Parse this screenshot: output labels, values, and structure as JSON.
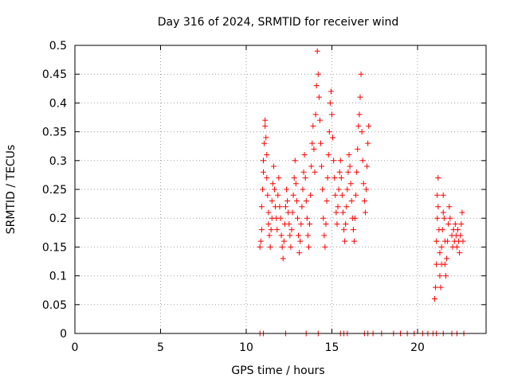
{
  "chart_data": {
    "type": "scatter",
    "title": "Day 316 of 2024, SRMTID for receiver wind",
    "xlabel": "GPS time / hours",
    "ylabel": "SRMTID / TECUs",
    "xlim": [
      0,
      24
    ],
    "ylim": [
      0,
      0.5
    ],
    "xticks": [
      "0",
      "5",
      "10",
      "15",
      "20"
    ],
    "xtick_values": [
      0,
      5,
      10,
      15,
      20
    ],
    "yticks": [
      "0",
      "0.05",
      "0.1",
      "0.15",
      "0.2",
      "0.25",
      "0.3",
      "0.35",
      "0.4",
      "0.45",
      "0.5"
    ],
    "ytick_values": [
      0,
      0.05,
      0.1,
      0.15,
      0.2,
      0.25,
      0.3,
      0.35,
      0.4,
      0.45,
      0.5
    ],
    "grid": true,
    "marker": "plus",
    "color": "#ff0000",
    "series": [
      {
        "name": "SRMTID",
        "points": [
          [
            10.8,
            0.15
          ],
          [
            10.85,
            0.16
          ],
          [
            10.9,
            0.18
          ],
          [
            10.9,
            0.22
          ],
          [
            10.95,
            0.25
          ],
          [
            11.0,
            0.28
          ],
          [
            11.0,
            0.3
          ],
          [
            11.05,
            0.33
          ],
          [
            11.1,
            0.36
          ],
          [
            11.1,
            0.37
          ],
          [
            11.15,
            0.34
          ],
          [
            11.2,
            0.31
          ],
          [
            11.2,
            0.27
          ],
          [
            11.25,
            0.24
          ],
          [
            11.3,
            0.21
          ],
          [
            11.3,
            0.19
          ],
          [
            11.35,
            0.17
          ],
          [
            11.4,
            0.15
          ],
          [
            11.45,
            0.18
          ],
          [
            11.5,
            0.2
          ],
          [
            11.5,
            0.23
          ],
          [
            11.55,
            0.26
          ],
          [
            11.6,
            0.29
          ],
          [
            11.65,
            0.25
          ],
          [
            11.7,
            0.22
          ],
          [
            11.75,
            0.2
          ],
          [
            11.8,
            0.18
          ],
          [
            11.85,
            0.24
          ],
          [
            11.9,
            0.27
          ],
          [
            11.95,
            0.22
          ],
          [
            12.0,
            0.2
          ],
          [
            12.05,
            0.17
          ],
          [
            12.1,
            0.15
          ],
          [
            12.15,
            0.13
          ],
          [
            12.2,
            0.16
          ],
          [
            12.25,
            0.19
          ],
          [
            12.3,
            0.22
          ],
          [
            12.35,
            0.25
          ],
          [
            12.4,
            0.23
          ],
          [
            12.45,
            0.21
          ],
          [
            12.5,
            0.19
          ],
          [
            12.55,
            0.17
          ],
          [
            12.6,
            0.15
          ],
          [
            12.65,
            0.18
          ],
          [
            12.7,
            0.21
          ],
          [
            12.75,
            0.24
          ],
          [
            12.8,
            0.27
          ],
          [
            12.85,
            0.3
          ],
          [
            12.9,
            0.26
          ],
          [
            12.95,
            0.23
          ],
          [
            13.0,
            0.2
          ],
          [
            13.05,
            0.17
          ],
          [
            13.1,
            0.14
          ],
          [
            13.15,
            0.16
          ],
          [
            13.2,
            0.19
          ],
          [
            13.25,
            0.22
          ],
          [
            13.3,
            0.25
          ],
          [
            13.35,
            0.28
          ],
          [
            13.4,
            0.31
          ],
          [
            13.45,
            0.27
          ],
          [
            13.5,
            0.23
          ],
          [
            13.55,
            0.2
          ],
          [
            13.6,
            0.17
          ],
          [
            13.65,
            0.15
          ],
          [
            13.7,
            0.19
          ],
          [
            13.75,
            0.24
          ],
          [
            13.8,
            0.29
          ],
          [
            13.85,
            0.33
          ],
          [
            13.9,
            0.36
          ],
          [
            13.95,
            0.32
          ],
          [
            14.0,
            0.28
          ],
          [
            14.05,
            0.38
          ],
          [
            14.1,
            0.43
          ],
          [
            14.15,
            0.49
          ],
          [
            14.2,
            0.45
          ],
          [
            14.25,
            0.41
          ],
          [
            14.3,
            0.37
          ],
          [
            14.35,
            0.33
          ],
          [
            14.4,
            0.29
          ],
          [
            14.45,
            0.25
          ],
          [
            14.5,
            0.2
          ],
          [
            14.55,
            0.17
          ],
          [
            14.6,
            0.15
          ],
          [
            14.65,
            0.19
          ],
          [
            14.7,
            0.23
          ],
          [
            14.75,
            0.27
          ],
          [
            14.8,
            0.31
          ],
          [
            14.85,
            0.35
          ],
          [
            14.9,
            0.4
          ],
          [
            14.95,
            0.42
          ],
          [
            15.0,
            0.38
          ],
          [
            15.05,
            0.34
          ],
          [
            15.1,
            0.3
          ],
          [
            15.15,
            0.27
          ],
          [
            15.2,
            0.24
          ],
          [
            15.25,
            0.21
          ],
          [
            15.3,
            0.19
          ],
          [
            15.35,
            0.22
          ],
          [
            15.4,
            0.25
          ],
          [
            15.45,
            0.28
          ],
          [
            15.5,
            0.3
          ],
          [
            15.55,
            0.27
          ],
          [
            15.6,
            0.24
          ],
          [
            15.65,
            0.21
          ],
          [
            15.7,
            0.18
          ],
          [
            15.75,
            0.16
          ],
          [
            15.8,
            0.19
          ],
          [
            15.85,
            0.22
          ],
          [
            15.9,
            0.25
          ],
          [
            15.95,
            0.28
          ],
          [
            16.0,
            0.31
          ],
          [
            16.05,
            0.29
          ],
          [
            16.1,
            0.26
          ],
          [
            16.15,
            0.23
          ],
          [
            16.2,
            0.2
          ],
          [
            16.25,
            0.18
          ],
          [
            16.3,
            0.16
          ],
          [
            16.35,
            0.2
          ],
          [
            16.4,
            0.24
          ],
          [
            16.45,
            0.28
          ],
          [
            16.5,
            0.32
          ],
          [
            16.55,
            0.36
          ],
          [
            16.6,
            0.38
          ],
          [
            16.65,
            0.41
          ],
          [
            16.7,
            0.45
          ],
          [
            16.75,
            0.35
          ],
          [
            16.8,
            0.3
          ],
          [
            16.85,
            0.26
          ],
          [
            16.9,
            0.23
          ],
          [
            16.95,
            0.21
          ],
          [
            17.0,
            0.25
          ],
          [
            17.05,
            0.29
          ],
          [
            17.1,
            0.33
          ],
          [
            17.15,
            0.36
          ],
          [
            21.0,
            0.06
          ],
          [
            21.05,
            0.08
          ],
          [
            21.1,
            0.12
          ],
          [
            21.1,
            0.16
          ],
          [
            21.15,
            0.2
          ],
          [
            21.15,
            0.24
          ],
          [
            21.2,
            0.27
          ],
          [
            21.2,
            0.22
          ],
          [
            21.25,
            0.18
          ],
          [
            21.3,
            0.14
          ],
          [
            21.3,
            0.1
          ],
          [
            21.35,
            0.08
          ],
          [
            21.4,
            0.12
          ],
          [
            21.4,
            0.15
          ],
          [
            21.45,
            0.18
          ],
          [
            21.5,
            0.21
          ],
          [
            21.5,
            0.24
          ],
          [
            21.55,
            0.2
          ],
          [
            21.6,
            0.16
          ],
          [
            21.6,
            0.12
          ],
          [
            21.65,
            0.1
          ],
          [
            21.7,
            0.13
          ],
          [
            21.75,
            0.16
          ],
          [
            21.8,
            0.19
          ],
          [
            21.85,
            0.22
          ],
          [
            21.9,
            0.2
          ],
          [
            22.0,
            0.17
          ],
          [
            22.05,
            0.15
          ],
          [
            22.1,
            0.18
          ],
          [
            22.15,
            0.16
          ],
          [
            22.2,
            0.19
          ],
          [
            22.25,
            0.17
          ],
          [
            22.3,
            0.15
          ],
          [
            22.35,
            0.18
          ],
          [
            22.4,
            0.16
          ],
          [
            22.45,
            0.14
          ],
          [
            22.5,
            0.17
          ],
          [
            22.55,
            0.19
          ],
          [
            22.6,
            0.21
          ],
          [
            22.65,
            0.16
          ],
          [
            10.8,
            0.0
          ],
          [
            11.0,
            0.0
          ],
          [
            12.3,
            0.0
          ],
          [
            13.5,
            0.0
          ],
          [
            14.2,
            0.0
          ],
          [
            15.5,
            0.0
          ],
          [
            15.7,
            0.0
          ],
          [
            15.9,
            0.0
          ],
          [
            16.9,
            0.0
          ],
          [
            17.1,
            0.0
          ],
          [
            17.4,
            0.0
          ],
          [
            17.9,
            0.0
          ],
          [
            18.6,
            0.0
          ],
          [
            19.0,
            0.0
          ],
          [
            19.4,
            0.0
          ],
          [
            19.8,
            0.0
          ],
          [
            20.3,
            0.0
          ],
          [
            20.6,
            0.0
          ],
          [
            20.9,
            0.0
          ],
          [
            21.1,
            0.0
          ],
          [
            21.5,
            0.0
          ],
          [
            22.0,
            0.0
          ],
          [
            22.3,
            0.0
          ],
          [
            22.7,
            0.0
          ]
        ]
      }
    ]
  }
}
